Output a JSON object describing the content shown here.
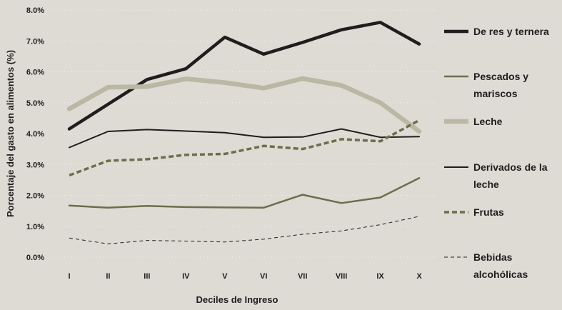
{
  "chart_data": {
    "type": "line",
    "title": "",
    "xlabel": "Deciles de Ingreso",
    "ylabel": "Porcentaje del gasto en alimentos (%)",
    "categories": [
      "I",
      "II",
      "III",
      "IV",
      "V",
      "VI",
      "VII",
      "VIII",
      "IX",
      "X"
    ],
    "ylim": [
      0,
      8
    ],
    "yticks": [
      "0.0%",
      "1.0%",
      "2.0%",
      "3.0%",
      "4.0%",
      "5.0%",
      "6.0%",
      "7.0%",
      "8.0%"
    ],
    "legend_position": "right",
    "series": [
      {
        "name": "De res y ternera",
        "legend_lines": [
          "De res y ternera"
        ],
        "color": "#1e1e1e",
        "width": 4.5,
        "dash": "",
        "values": [
          4.15,
          4.95,
          5.75,
          6.1,
          7.12,
          6.57,
          6.95,
          7.36,
          7.6,
          6.9
        ]
      },
      {
        "name": "Pescados y mariscos",
        "legend_lines": [
          "Pescados y",
          "mariscos"
        ],
        "color": "#6b6e4c",
        "width": 2.5,
        "dash": "",
        "values": [
          1.67,
          1.6,
          1.66,
          1.62,
          1.61,
          1.6,
          2.02,
          1.75,
          1.93,
          2.56
        ]
      },
      {
        "name": "Leche",
        "legend_lines": [
          "Leche"
        ],
        "color": "#bab8a4",
        "width": 6.5,
        "dash": "",
        "values": [
          4.8,
          5.5,
          5.52,
          5.77,
          5.65,
          5.47,
          5.78,
          5.56,
          5.0,
          4.07
        ]
      },
      {
        "name": "Derivados de la leche",
        "legend_lines": [
          "Derivados de la",
          "leche"
        ],
        "color": "#1e1e1e",
        "width": 2,
        "dash": "",
        "values": [
          3.55,
          4.07,
          4.13,
          4.08,
          4.03,
          3.88,
          3.89,
          4.15,
          3.88,
          3.9
        ]
      },
      {
        "name": "Frutas",
        "legend_lines": [
          "Frutas"
        ],
        "color": "#6b6e4c",
        "width": 3.5,
        "dash": "7,4",
        "values": [
          2.65,
          3.12,
          3.17,
          3.31,
          3.34,
          3.6,
          3.5,
          3.82,
          3.75,
          4.43
        ]
      },
      {
        "name": "Bebidas alcohólicas",
        "legend_lines": [
          "Bebidas",
          "alcohólicas"
        ],
        "color": "#1e1e1e",
        "width": 1,
        "dash": "5,4",
        "values": [
          0.62,
          0.43,
          0.54,
          0.52,
          0.49,
          0.58,
          0.74,
          0.85,
          1.05,
          1.32
        ]
      }
    ]
  }
}
